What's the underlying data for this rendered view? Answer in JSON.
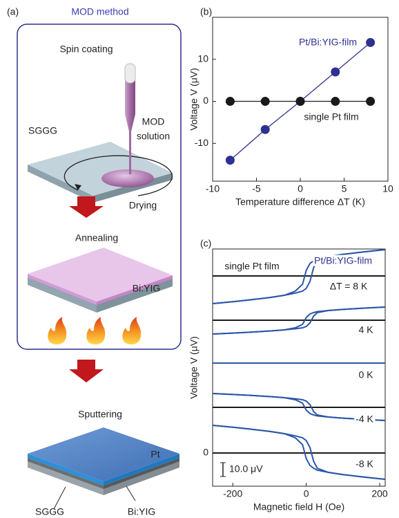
{
  "diagram": {
    "panel_label": "(a)",
    "title": "MOD method",
    "steps": [
      "Spin coating",
      "Drying",
      "Annealing",
      "Sputtering"
    ],
    "labels": [
      "MOD",
      "solution",
      "SGGG",
      "Bi:YIG",
      "Pt",
      "SGGG",
      "Bi:YIG"
    ]
  },
  "chart_data": [
    {
      "type": "scatter",
      "panel_label": "(b)",
      "xlabel": "Temperature difference ΔT (K)",
      "ylabel": "Voltage V (μV)",
      "xlim": [
        -10,
        10
      ],
      "ylim": [
        -19,
        20
      ],
      "xticks": [
        -10,
        -5,
        0,
        5,
        10
      ],
      "yticks": [
        -10,
        0,
        10
      ],
      "series": [
        {
          "color": "#2e3192",
          "x": [
            -8,
            -4,
            0,
            4,
            8
          ],
          "values": [
            -14,
            -6.7,
            0,
            7,
            14
          ]
        },
        {
          "color": "#1a1a1a",
          "x": [
            -8,
            -4,
            0,
            4,
            8
          ],
          "values": [
            0,
            0,
            0,
            0,
            0
          ]
        }
      ],
      "annotations": [
        {
          "text": "Pt/Bi:YIG-film",
          "color": "#2e3192"
        },
        {
          "text": "single Pt film",
          "color": "#222"
        }
      ]
    },
    {
      "type": "line",
      "panel_label": "(c)",
      "xlabel": "Magnetic field H (Oe)",
      "ylabel": "Voltage V (μV)",
      "xlim": [
        -255,
        215
      ],
      "ylim": [
        -24,
        147.5
      ],
      "xticks": [
        -200,
        0,
        200
      ],
      "yticks": [
        0
      ],
      "scale_bar": {
        "value": 10,
        "label": "10.0 μV"
      },
      "series": [
        {
          "color": "#1a1a1a",
          "x": [
            -255,
            215
          ],
          "values": [
            128,
            128
          ]
        },
        {
          "color": "#1a1a1a",
          "x": [
            -255,
            215
          ],
          "values": [
            96,
            96
          ]
        },
        {
          "color": "#1a1a1a",
          "x": [
            -255,
            215
          ],
          "values": [
            65,
            65
          ]
        },
        {
          "color": "#1a1a1a",
          "x": [
            -255,
            215
          ],
          "values": [
            33,
            33
          ]
        },
        {
          "color": "#1a1a1a",
          "x": [
            -255,
            215
          ],
          "values": [
            0,
            0
          ]
        },
        {
          "color": "#2b55a8",
          "x": [
            -255,
            -200,
            -150,
            -100,
            -60,
            -30,
            -10,
            0,
            10,
            20,
            30,
            60,
            100,
            150,
            200,
            215
          ],
          "values": [
            108,
            109.4,
            110.8,
            112.4,
            114,
            115.6,
            117,
            119,
            124,
            134,
            139,
            142,
            143.6,
            145.2,
            146.6,
            147
          ]
        },
        {
          "color": "#2b55a8",
          "x": [
            -255,
            -200,
            -150,
            -100,
            -60,
            -30,
            -10,
            0,
            10,
            20,
            30,
            60,
            100,
            150,
            200,
            215
          ],
          "values": [
            108,
            109.4,
            110.8,
            112.4,
            114,
            117,
            122,
            132,
            137,
            139,
            140.4,
            142,
            143.6,
            145.2,
            146.6,
            147
          ]
        },
        {
          "color": "#2b55a8",
          "x": [
            -255,
            -200,
            -150,
            -100,
            -60,
            -30,
            -10,
            0,
            10,
            20,
            30,
            60,
            100,
            150,
            200,
            215
          ],
          "values": [
            86,
            86.7,
            87.4,
            88.2,
            89,
            89.8,
            90.5,
            91.5,
            94,
            99,
            101.5,
            103,
            103.8,
            104.6,
            105.3,
            105.5
          ]
        },
        {
          "color": "#2b55a8",
          "x": [
            -255,
            -200,
            -150,
            -100,
            -60,
            -30,
            -10,
            0,
            10,
            20,
            30,
            60,
            100,
            150,
            200,
            215
          ],
          "values": [
            86,
            86.7,
            87.4,
            88.2,
            89,
            90.5,
            93,
            98,
            100.5,
            101.5,
            102.2,
            103,
            103.8,
            104.6,
            105.3,
            105.5
          ]
        },
        {
          "color": "#2b55a8",
          "x": [
            -255,
            -200,
            -150,
            -100,
            -60,
            -30,
            -10,
            0,
            10,
            20,
            30,
            60,
            100,
            150,
            200,
            215
          ],
          "values": [
            65,
            65,
            65,
            65,
            65,
            65,
            65,
            65,
            65,
            65,
            65,
            65,
            65,
            65,
            65,
            65
          ]
        },
        {
          "color": "#2b55a8",
          "x": [
            -255,
            -200,
            -150,
            -100,
            -60,
            -30,
            -10,
            0,
            10,
            20,
            30,
            60,
            100,
            150,
            200,
            215
          ],
          "values": [
            43,
            42.3,
            41.6,
            40.8,
            40,
            39.2,
            38.5,
            37.5,
            35,
            30,
            27.5,
            26,
            25.2,
            24.4,
            23.7,
            23.5
          ]
        },
        {
          "color": "#2b55a8",
          "x": [
            -255,
            -200,
            -150,
            -100,
            -60,
            -30,
            -10,
            0,
            10,
            20,
            30,
            60,
            100,
            150,
            200,
            215
          ],
          "values": [
            43,
            42.3,
            41.6,
            40.8,
            40,
            38.5,
            36,
            31,
            28.5,
            27.5,
            26.8,
            26,
            25.2,
            24.4,
            23.7,
            23.5
          ]
        },
        {
          "color": "#2b55a8",
          "x": [
            -255,
            -200,
            -150,
            -100,
            -60,
            -30,
            -10,
            0,
            10,
            20,
            30,
            60,
            100,
            150,
            200,
            215
          ],
          "values": [
            20,
            18.6,
            17.2,
            15.6,
            14,
            12.4,
            11,
            9,
            4,
            -6,
            -11,
            -14,
            -15.6,
            -17.2,
            -18.6,
            -19
          ]
        },
        {
          "color": "#2b55a8",
          "x": [
            -255,
            -200,
            -150,
            -100,
            -60,
            -30,
            -10,
            0,
            10,
            20,
            30,
            60,
            100,
            150,
            200,
            215
          ],
          "values": [
            20,
            18.6,
            17.2,
            15.6,
            14,
            11,
            6,
            -4,
            -9,
            -11,
            -12.4,
            -14,
            -15.6,
            -17.2,
            -18.6,
            -19
          ]
        }
      ],
      "annotations": [
        {
          "text": "Pt/Bi:YIG-film",
          "color": "#2e3192"
        },
        {
          "text": "single Pt film",
          "color": "#222"
        },
        {
          "text": "ΔT = 8 K",
          "color": "#222"
        },
        {
          "text": "4 K",
          "color": "#222"
        },
        {
          "text": "0 K",
          "color": "#222"
        },
        {
          "text": "-4 K",
          "color": "#222"
        },
        {
          "text": "-8 K",
          "color": "#222"
        }
      ]
    }
  ]
}
